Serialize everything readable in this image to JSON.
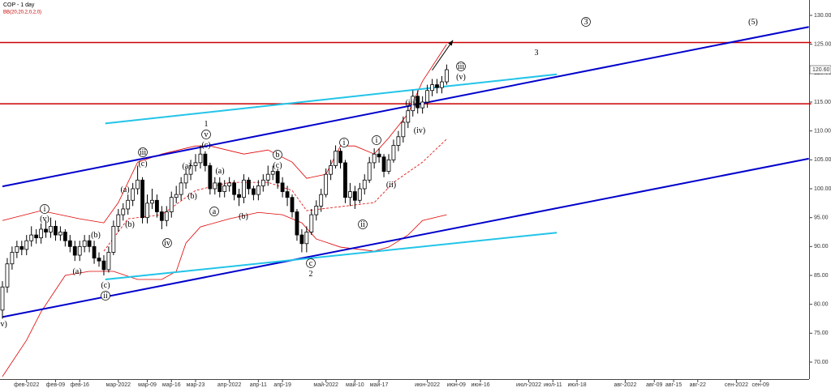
{
  "chart_data": {
    "type": "candlestick",
    "title": "COP - 1 day",
    "indicator": "BB(20,20,2,0,2,0)",
    "categories": [
      null,
      null,
      null,
      null,
      null,
      "фев-2022",
      null,
      null,
      null,
      null,
      null,
      "фев-09",
      null,
      null,
      null,
      null,
      "фев-16",
      null,
      null,
      null,
      null,
      null,
      null,
      null,
      "мар-2022",
      null,
      null,
      null,
      null,
      null,
      "мар-09",
      null,
      null,
      null,
      null,
      "мар-16",
      null,
      null,
      null,
      null,
      "мар-23",
      null,
      null,
      null,
      null,
      null,
      null,
      "апр-2022",
      null,
      null,
      null,
      null,
      null,
      "апр-11",
      null,
      null,
      null,
      null,
      "апр-19",
      null,
      null,
      null,
      null,
      null,
      null,
      null,
      null,
      "май-2022",
      null,
      null,
      null,
      null,
      null,
      "май-10",
      null,
      null,
      null,
      null,
      "май-17",
      null,
      null,
      null,
      null,
      null,
      null,
      null,
      null,
      null,
      "июн-2022",
      null,
      null,
      null,
      null,
      null,
      "июн-09",
      null,
      null,
      null,
      null,
      "июн-16",
      null,
      null,
      null,
      null,
      null,
      null,
      null,
      null,
      null,
      "июл-2022",
      null,
      null,
      null,
      null,
      "июл-11",
      null,
      null,
      null,
      null,
      "июл-18",
      null,
      null,
      null,
      null,
      null,
      null,
      null,
      null,
      null,
      "авг-2022",
      null,
      null,
      null,
      null,
      null,
      "авг-09",
      null,
      null,
      null,
      "авг-15",
      null,
      null,
      null,
      null,
      "авг-22",
      null,
      null,
      null,
      null,
      null,
      null,
      null,
      "сен-2022",
      null,
      null,
      null,
      null,
      "сен-09",
      null,
      null,
      null,
      null,
      null,
      null,
      null,
      null,
      null
    ],
    "open": [
      79,
      83,
      87,
      89,
      90,
      89.5,
      91,
      92,
      91.5,
      93,
      92.5,
      93.5,
      92,
      92.5,
      91,
      90,
      88.5,
      90,
      91,
      90,
      88,
      87.5,
      86,
      89,
      93.5,
      95.5,
      96.5,
      98,
      100,
      101.5,
      95,
      97.5,
      98,
      96,
      94.5,
      96,
      98.5,
      99,
      101,
      102.5,
      104,
      104.5,
      106,
      104,
      100,
      101,
      99.5,
      100.5,
      101,
      99,
      98.5,
      101.5,
      100,
      99,
      100.5,
      101.5,
      102.5,
      103,
      101,
      99.5,
      98.5,
      96,
      92,
      90.5,
      92.5,
      95.5,
      97,
      99,
      102.5,
      104,
      106.5,
      104.5,
      98.5,
      99.5,
      98,
      100,
      101.5,
      104.5,
      106,
      105.5,
      103,
      105,
      107.5,
      109,
      111.5,
      113.5,
      116,
      114,
      115,
      117,
      118,
      117.5,
      118.5,
      null,
      null,
      null,
      null,
      null,
      null,
      null,
      null,
      null,
      null,
      null,
      null,
      null,
      null,
      null,
      null,
      null,
      null,
      null,
      null,
      null,
      null,
      null,
      null,
      null,
      null,
      null,
      null,
      null,
      null,
      null,
      null,
      null,
      null,
      null,
      null,
      null,
      null,
      null,
      null,
      null,
      null,
      null,
      null,
      null,
      null,
      null,
      null,
      null,
      null,
      null,
      null,
      null,
      null,
      null,
      null,
      null,
      null,
      null,
      null,
      null,
      null,
      null,
      null,
      null,
      null,
      null,
      null,
      null,
      null,
      null,
      null,
      null,
      null
    ],
    "high": [
      84,
      88,
      90,
      91,
      91,
      92,
      93.5,
      93,
      94,
      94.5,
      95,
      94.5,
      93.5,
      93,
      92,
      91,
      91,
      92,
      92,
      91,
      89,
      88.5,
      90,
      94.5,
      96.5,
      97.5,
      99,
      101,
      104,
      102,
      99,
      100,
      99,
      97,
      97,
      99.5,
      100.5,
      102,
      103.5,
      105,
      106,
      107.5,
      106.5,
      104.5,
      102,
      102,
      101.5,
      102,
      101.5,
      100,
      102.5,
      102,
      100.5,
      101.5,
      102.5,
      104,
      104,
      103.5,
      102,
      100.5,
      99,
      96.5,
      93,
      93.5,
      96.5,
      98,
      100,
      103.5,
      105,
      107.5,
      107,
      105,
      101,
      100.5,
      101,
      102.5,
      105.5,
      107,
      107,
      106,
      106,
      108.5,
      110,
      112.5,
      114.5,
      117,
      117,
      116,
      118,
      119,
      119,
      119.5,
      121.5,
      null,
      null,
      null,
      null,
      null,
      null,
      null,
      null,
      null,
      null,
      null,
      null,
      null,
      null,
      null,
      null,
      null,
      null,
      null,
      null,
      null,
      null,
      null,
      null,
      null,
      null,
      null,
      null,
      null,
      null,
      null,
      null,
      null,
      null,
      null,
      null,
      null,
      null,
      null,
      null,
      null,
      null,
      null,
      null,
      null,
      null,
      null,
      null,
      null,
      null,
      null,
      null,
      null,
      null,
      null,
      null,
      null,
      null,
      null,
      null,
      null,
      null,
      null,
      null,
      null,
      null,
      null,
      null,
      null,
      null,
      null,
      null,
      null,
      null
    ],
    "low": [
      77.5,
      82,
      86,
      88,
      88.5,
      88.5,
      90,
      90.5,
      90.5,
      91.5,
      91.5,
      91,
      91,
      90,
      89,
      87.5,
      87.5,
      89,
      89,
      87,
      86.5,
      85,
      85.5,
      88.5,
      92.5,
      94.5,
      95.5,
      97,
      99,
      94,
      94,
      96.5,
      95,
      93,
      93.5,
      95,
      97.5,
      98,
      100,
      101.5,
      103,
      103.5,
      103,
      99,
      99,
      98.5,
      98.5,
      99.5,
      98,
      97,
      97.5,
      99,
      98,
      98,
      99.5,
      100.5,
      101.5,
      100,
      98.5,
      97,
      95,
      91,
      89,
      89,
      92,
      94.5,
      96,
      98.5,
      101.5,
      103.5,
      103.5,
      97.5,
      97,
      96.5,
      97.5,
      99,
      101,
      103.5,
      104.5,
      102,
      102.5,
      104.5,
      106.5,
      108,
      110.5,
      112.5,
      113,
      113,
      114,
      116,
      116.5,
      116.5,
      118,
      null,
      null,
      null,
      null,
      null,
      null,
      null,
      null,
      null,
      null,
      null,
      null,
      null,
      null,
      null,
      null,
      null,
      null,
      null,
      null,
      null,
      null,
      null,
      null,
      null,
      null,
      null,
      null,
      null,
      null,
      null,
      null,
      null,
      null,
      null,
      null,
      null,
      null,
      null,
      null,
      null,
      null,
      null,
      null,
      null,
      null,
      null,
      null,
      null,
      null,
      null,
      null,
      null,
      null,
      null,
      null,
      null,
      null,
      null,
      null,
      null,
      null,
      null,
      null,
      null,
      null,
      null,
      null,
      null,
      null,
      null,
      null,
      null,
      null
    ],
    "close": [
      83,
      87,
      89,
      90,
      89.5,
      91,
      92,
      91.5,
      93,
      92.5,
      93.5,
      92,
      92.5,
      91,
      90,
      88.5,
      90,
      91,
      90,
      88,
      87.5,
      86,
      89,
      93.5,
      95.5,
      96.5,
      98,
      100,
      101.5,
      95,
      97.5,
      98,
      96,
      94.5,
      96,
      98.5,
      99,
      101,
      102.5,
      104,
      104.5,
      106,
      104,
      100,
      101,
      99.5,
      100.5,
      101,
      99,
      98.5,
      101.5,
      100,
      99,
      100.5,
      101.5,
      102.5,
      103,
      101,
      99.5,
      98.5,
      96,
      92,
      90.5,
      92.5,
      95.5,
      97,
      99,
      102.5,
      104,
      106.5,
      104.5,
      98.5,
      99.5,
      98,
      100,
      101.5,
      104.5,
      106,
      105.5,
      103,
      105,
      107.5,
      109,
      111.5,
      113.5,
      116,
      114,
      115,
      117,
      118,
      117.5,
      118.5,
      120.6,
      null,
      null,
      null,
      null,
      null,
      null,
      null,
      null,
      null,
      null,
      null,
      null,
      null,
      null,
      null,
      null,
      null,
      null,
      null,
      null,
      null,
      null,
      null,
      null,
      null,
      null,
      null,
      null,
      null,
      null,
      null,
      null,
      null,
      null,
      null,
      null,
      null,
      null,
      null,
      null,
      null,
      null,
      null,
      null,
      null,
      null,
      null,
      null,
      null,
      null,
      null,
      null,
      null,
      null,
      null,
      null,
      null,
      null,
      null,
      null,
      null,
      null,
      null,
      null,
      null,
      null,
      null,
      null,
      null,
      null,
      null,
      null,
      null,
      null
    ],
    "up_color": "#ffffff",
    "down_color": "#000000",
    "ylim": [
      67.06,
      132.66
    ],
    "yticks": [
      {
        "value": 70,
        "label": "70.00"
      },
      {
        "value": 75,
        "label": "75.00"
      },
      {
        "value": 80,
        "label": "80.00"
      },
      {
        "value": 85,
        "label": "85.00"
      },
      {
        "value": 90,
        "label": "90.00"
      },
      {
        "value": 95,
        "label": "95.00"
      },
      {
        "value": 100,
        "label": "100.00"
      },
      {
        "value": 105,
        "label": "105.00"
      },
      {
        "value": 110,
        "label": "110.00"
      },
      {
        "value": 115,
        "label": "115.00"
      },
      {
        "value": 120,
        "label": "120.00"
      },
      {
        "value": 125,
        "label": "125.00"
      },
      {
        "value": 130,
        "label": "130.00"
      }
    ],
    "last_price": {
      "value": 120.6,
      "label": "120.60"
    },
    "bands": [
      {
        "color": "#e00000",
        "dashed": false,
        "x": [
          0,
          8,
          16,
          21,
          24,
          28,
          33,
          40,
          43,
          50,
          55,
          60,
          63,
          67,
          70,
          73,
          77,
          80,
          84,
          87,
          92
        ],
        "y": [
          94.5,
          96.2,
          94.8,
          94.1,
          97.6,
          104.6,
          106,
          107.4,
          107.4,
          106,
          106.7,
          104.6,
          101.8,
          102.5,
          107.4,
          107.4,
          106,
          108.8,
          113,
          118.6,
          125
        ]
      },
      {
        "color": "#e00000",
        "dashed": true,
        "x": [
          21,
          26,
          33,
          40,
          47,
          55,
          60,
          63,
          70,
          77,
          81,
          87,
          92
        ],
        "y": [
          89.2,
          94.8,
          95.5,
          99.7,
          101.1,
          101.1,
          99.7,
          96.2,
          96.9,
          97.6,
          101.1,
          104.6,
          108.6
        ]
      },
      {
        "color": "#e00000",
        "dashed": false,
        "x": [
          0,
          5,
          8,
          13,
          18,
          23,
          28,
          33,
          36,
          38,
          41,
          47,
          53,
          58,
          62,
          65,
          70,
          77,
          80,
          84,
          87,
          92
        ],
        "y": [
          67.5,
          73.8,
          78.7,
          85,
          85.7,
          85.7,
          84.3,
          84.3,
          85.7,
          90.6,
          93.4,
          94.8,
          95.9,
          95.5,
          94.1,
          91.3,
          89.9,
          89.2,
          89.9,
          92,
          94.5,
          95.5
        ]
      }
    ],
    "trendlines": [
      {
        "color": "#cc0000",
        "width": 1.5,
        "x": [
          -1,
          167.5
        ],
        "y": [
          125.3,
          125.3
        ]
      },
      {
        "color": "#cc0000",
        "width": 1.5,
        "x": [
          -1,
          167.5
        ],
        "y": [
          114.7,
          114.7
        ]
      },
      {
        "color": "#0000cc",
        "width": 2,
        "x": [
          0,
          167
        ],
        "y": [
          100.4,
          128
        ]
      },
      {
        "color": "#0000cc",
        "width": 2,
        "x": [
          0,
          167
        ],
        "y": [
          77.8,
          105.2
        ]
      },
      {
        "color": "#22c4e8",
        "width": 2,
        "x": [
          21.3,
          114.8
        ],
        "y": [
          111.3,
          119.8
        ]
      },
      {
        "color": "#22c4e8",
        "width": 2,
        "x": [
          21.3,
          114.8
        ],
        "y": [
          84.3,
          92.4
        ]
      }
    ],
    "arrow": {
      "color": "#000000",
      "x": [
        89,
        93.3
      ],
      "y": [
        120.5,
        125.7
      ]
    },
    "annotations": [
      {
        "text": "(v)",
        "circled": false
      },
      {
        "text": "i",
        "circled": true
      },
      {
        "text": "(v)",
        "circled": false
      },
      {
        "text": "(a)",
        "circled": false
      },
      {
        "text": "(b)",
        "circled": false
      },
      {
        "text": "(c)",
        "circled": false
      },
      {
        "text": "ii",
        "circled": true
      },
      {
        "text": "(a)",
        "circled": false
      },
      {
        "text": "(b)",
        "circled": false
      },
      {
        "text": "iii",
        "circled": true
      },
      {
        "text": "(c)",
        "circled": false
      },
      {
        "text": "iv",
        "circled": true
      },
      {
        "text": "(a)",
        "circled": false
      },
      {
        "text": "(b)",
        "circled": false
      },
      {
        "text": "1",
        "circled": false
      },
      {
        "text": "v",
        "circled": true
      },
      {
        "text": "(c)",
        "circled": false
      },
      {
        "text": "(a)",
        "circled": false
      },
      {
        "text": "a",
        "circled": true
      },
      {
        "text": "(b)",
        "circled": false
      },
      {
        "text": "b",
        "circled": true
      },
      {
        "text": "(c)",
        "circled": false
      },
      {
        "text": "c",
        "circled": true
      },
      {
        "text": "2",
        "circled": false
      },
      {
        "text": "i",
        "circled": true
      },
      {
        "text": "i",
        "circled": true
      },
      {
        "text": "ii",
        "circled": true
      },
      {
        "text": "(ii)",
        "circled": false
      },
      {
        "text": "(iii)",
        "circled": false
      },
      {
        "text": "(iv)",
        "circled": false
      },
      {
        "text": "iii",
        "circled": true
      },
      {
        "text": "(v)",
        "circled": false
      },
      {
        "text": "3",
        "circled": false
      },
      {
        "text": "3",
        "circled": true
      },
      {
        "text": "(5)",
        "circled": false
      }
    ]
  }
}
